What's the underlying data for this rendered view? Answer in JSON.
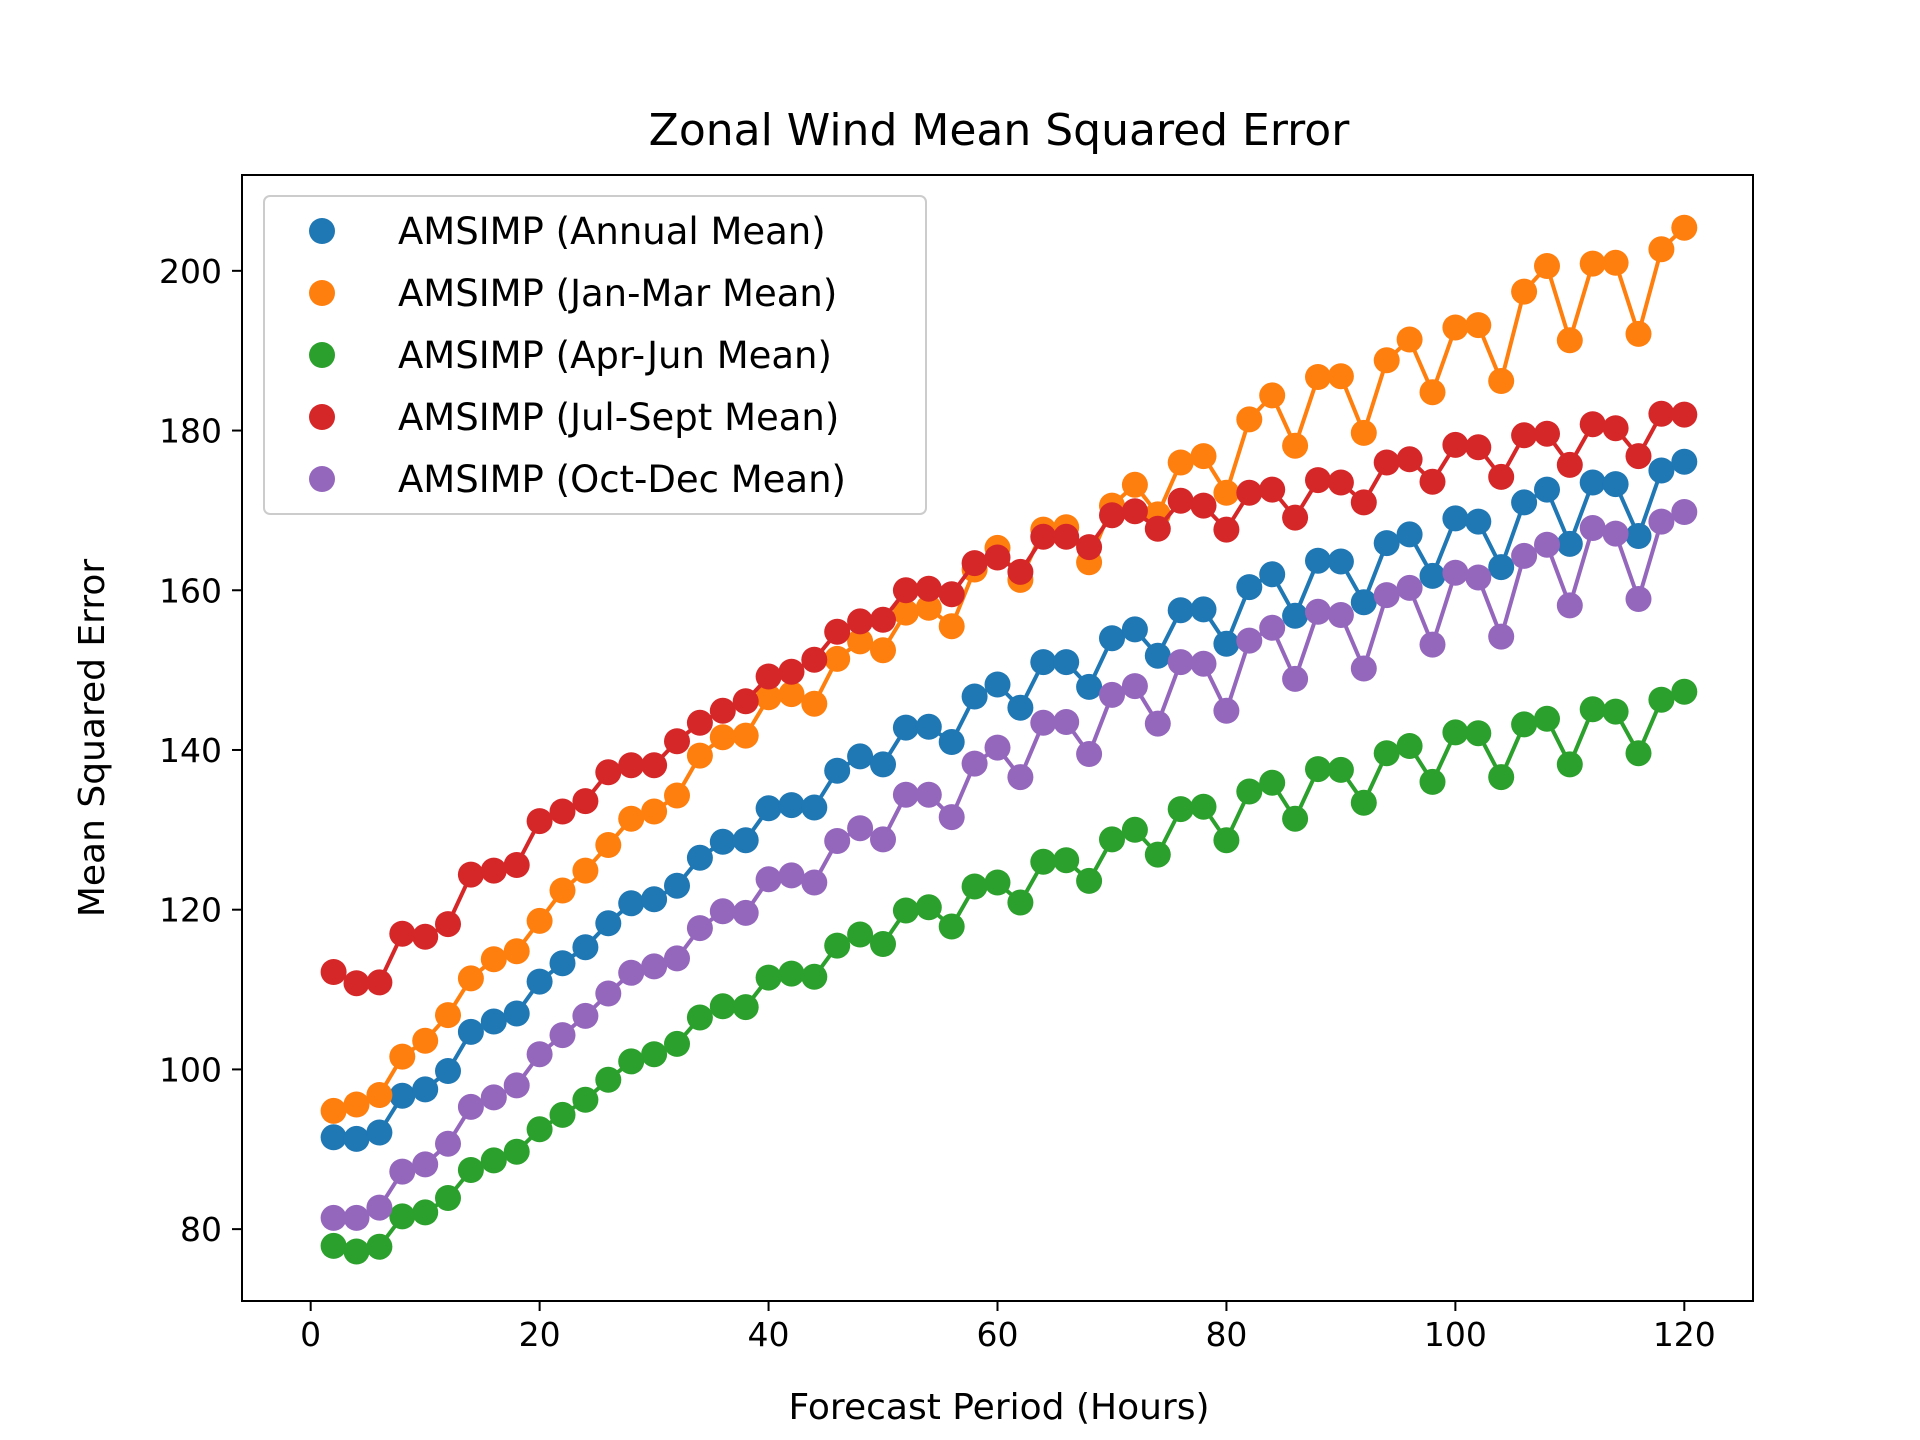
{
  "chart_data": {
    "type": "line",
    "title": "Zonal Wind Mean Squared Error",
    "xlabel": "Forecast Period (Hours)",
    "ylabel": "Mean Squared Error",
    "xlim": [
      -6,
      126
    ],
    "ylim": [
      71,
      212
    ],
    "xticks": [
      0,
      20,
      40,
      60,
      80,
      100,
      120
    ],
    "yticks": [
      80,
      100,
      120,
      140,
      160,
      180,
      200
    ],
    "grid": false,
    "legend_position": "top-left",
    "markers": true,
    "x": [
      2,
      4,
      6,
      8,
      10,
      12,
      14,
      16,
      18,
      20,
      22,
      24,
      26,
      28,
      30,
      32,
      34,
      36,
      38,
      40,
      42,
      44,
      46,
      48,
      50,
      52,
      54,
      56,
      58,
      60,
      62,
      64,
      66,
      68,
      70,
      72,
      74,
      76,
      78,
      80,
      82,
      84,
      86,
      88,
      90,
      92,
      94,
      96,
      98,
      100,
      102,
      104,
      106,
      108,
      110,
      112,
      114,
      116,
      118,
      120
    ],
    "series": [
      {
        "name": "AMSIMP (Annual Mean)",
        "color": "#1f77b4",
        "values": [
          91.5,
          91.3,
          92.1,
          96.7,
          97.5,
          99.8,
          104.7,
          106.0,
          107.0,
          111.0,
          113.3,
          115.3,
          118.3,
          120.8,
          121.3,
          123.0,
          126.5,
          128.5,
          128.7,
          132.7,
          133.1,
          132.8,
          137.4,
          139.2,
          138.2,
          142.8,
          142.9,
          141.0,
          146.7,
          148.2,
          145.3,
          151.0,
          151.0,
          147.9,
          154.0,
          155.1,
          151.8,
          157.5,
          157.6,
          153.3,
          160.4,
          162.0,
          156.8,
          163.7,
          163.6,
          158.5,
          165.9,
          167.0,
          161.8,
          169.0,
          168.6,
          162.9,
          171.0,
          172.6,
          165.8,
          173.5,
          173.3,
          166.8,
          175.0,
          176.1
        ]
      },
      {
        "name": "AMSIMP (Jan-Mar Mean)",
        "color": "#ff7f0e",
        "values": [
          94.8,
          95.6,
          96.8,
          101.6,
          103.6,
          106.8,
          111.4,
          113.8,
          114.8,
          118.6,
          122.4,
          124.9,
          128.1,
          131.4,
          132.3,
          134.3,
          139.3,
          141.6,
          141.8,
          146.6,
          147.0,
          145.8,
          151.4,
          153.6,
          152.5,
          157.2,
          157.8,
          155.5,
          162.6,
          165.3,
          161.3,
          167.6,
          167.9,
          163.5,
          170.6,
          173.2,
          169.5,
          176.0,
          176.8,
          172.2,
          181.4,
          184.4,
          178.1,
          186.7,
          186.8,
          179.7,
          188.8,
          191.4,
          184.8,
          192.9,
          193.2,
          186.2,
          197.4,
          200.6,
          191.3,
          200.9,
          201.0,
          192.1,
          202.7,
          205.4
        ]
      },
      {
        "name": "AMSIMP (Apr-Jun Mean)",
        "color": "#2ca02c",
        "values": [
          77.9,
          77.2,
          77.8,
          81.6,
          82.1,
          83.9,
          87.4,
          88.6,
          89.7,
          92.5,
          94.3,
          96.2,
          98.7,
          101.0,
          101.9,
          103.2,
          106.5,
          107.9,
          107.8,
          111.5,
          112.0,
          111.6,
          115.5,
          116.9,
          115.7,
          119.9,
          120.3,
          117.9,
          122.9,
          123.4,
          120.9,
          126.0,
          126.2,
          123.6,
          128.8,
          130.0,
          126.9,
          132.6,
          132.9,
          128.7,
          134.8,
          135.9,
          131.4,
          137.6,
          137.5,
          133.4,
          139.6,
          140.5,
          136.0,
          142.2,
          142.1,
          136.6,
          143.2,
          143.9,
          138.2,
          145.1,
          144.8,
          139.6,
          146.3,
          147.3
        ]
      },
      {
        "name": "AMSIMP (Jul-Sept Mean)",
        "color": "#d62728",
        "values": [
          112.2,
          110.8,
          110.9,
          117.0,
          116.6,
          118.2,
          124.4,
          124.9,
          125.6,
          131.1,
          132.3,
          133.6,
          137.2,
          138.1,
          138.1,
          141.1,
          143.4,
          144.9,
          146.1,
          149.2,
          149.8,
          151.3,
          154.8,
          156.1,
          156.3,
          160.0,
          160.2,
          159.5,
          163.4,
          164.1,
          162.3,
          166.7,
          166.7,
          165.4,
          169.4,
          169.9,
          167.7,
          171.2,
          170.6,
          167.6,
          172.2,
          172.6,
          169.1,
          173.8,
          173.5,
          171.0,
          176.0,
          176.4,
          173.6,
          178.2,
          177.9,
          174.2,
          179.4,
          179.6,
          175.7,
          180.8,
          180.3,
          176.8,
          182.1,
          182.0
        ]
      },
      {
        "name": "AMSIMP (Oct-Dec Mean)",
        "color": "#9467bd",
        "values": [
          81.4,
          81.4,
          82.7,
          87.2,
          88.1,
          90.7,
          95.3,
          96.5,
          98.0,
          101.9,
          104.3,
          106.7,
          109.5,
          112.1,
          112.9,
          113.9,
          117.7,
          119.8,
          119.6,
          123.8,
          124.3,
          123.4,
          128.6,
          130.2,
          128.8,
          134.4,
          134.4,
          131.6,
          138.3,
          140.3,
          136.6,
          143.4,
          143.5,
          139.5,
          146.9,
          148.0,
          143.3,
          151.0,
          150.8,
          144.9,
          153.7,
          155.3,
          148.9,
          157.3,
          156.9,
          150.2,
          159.4,
          160.3,
          153.2,
          162.2,
          161.6,
          154.2,
          164.3,
          165.7,
          158.1,
          167.8,
          167.1,
          158.9,
          168.6,
          169.8
        ]
      }
    ]
  }
}
